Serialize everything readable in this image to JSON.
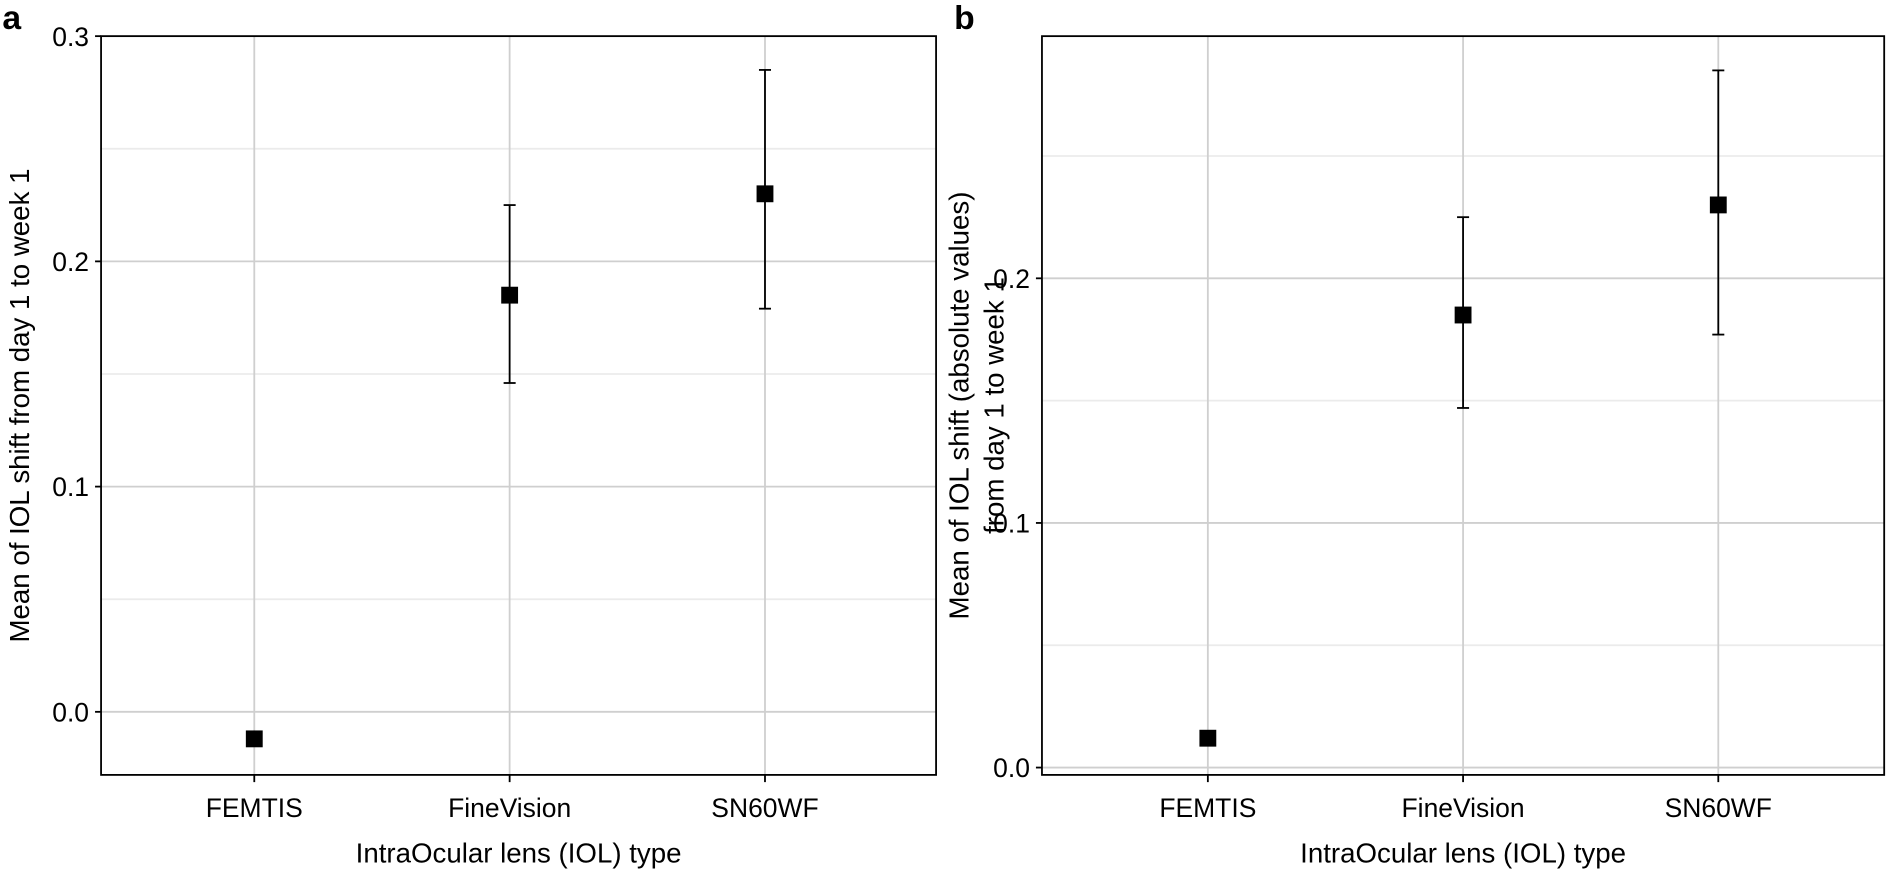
{
  "chart_data": [
    {
      "type": "scatter",
      "panel_label": "a",
      "xlabel": "IntraOcular lens (IOL) type",
      "ylabel": [
        "Mean of IOL shift from day 1 to week 1"
      ],
      "categories": [
        "FEMTIS",
        "FineVision",
        "SN60WF"
      ],
      "values": [
        -0.012,
        0.185,
        0.23
      ],
      "error_low": [
        null,
        0.146,
        0.179
      ],
      "error_high": [
        null,
        0.225,
        0.285
      ],
      "ylim": [
        -0.028,
        0.3
      ],
      "yticks": [
        0.0,
        0.1,
        0.2,
        0.3
      ],
      "ytick_labels": [
        "0.0",
        "0.1",
        "0.2",
        "0.3"
      ],
      "minor_yticks": [
        0.05,
        0.15,
        0.25
      ],
      "grid": true,
      "marker": "square",
      "color": "#000000"
    },
    {
      "type": "scatter",
      "panel_label": "b",
      "xlabel": "IntraOcular lens (IOL) type",
      "ylabel": [
        "Mean of IOL shift (absolute values)",
        "from day 1 to week 1"
      ],
      "categories": [
        "FEMTIS",
        "FineVision",
        "SN60WF"
      ],
      "values": [
        0.012,
        0.185,
        0.23
      ],
      "error_low": [
        null,
        0.147,
        0.177
      ],
      "error_high": [
        null,
        0.225,
        0.285
      ],
      "ylim": [
        -0.003,
        0.299
      ],
      "yticks": [
        0.0,
        0.1,
        0.2
      ],
      "ytick_labels": [
        "0.0",
        "0.1",
        "0.2"
      ],
      "minor_yticks": [
        0.05,
        0.15,
        0.25
      ],
      "grid": true,
      "marker": "square",
      "color": "#000000"
    }
  ]
}
